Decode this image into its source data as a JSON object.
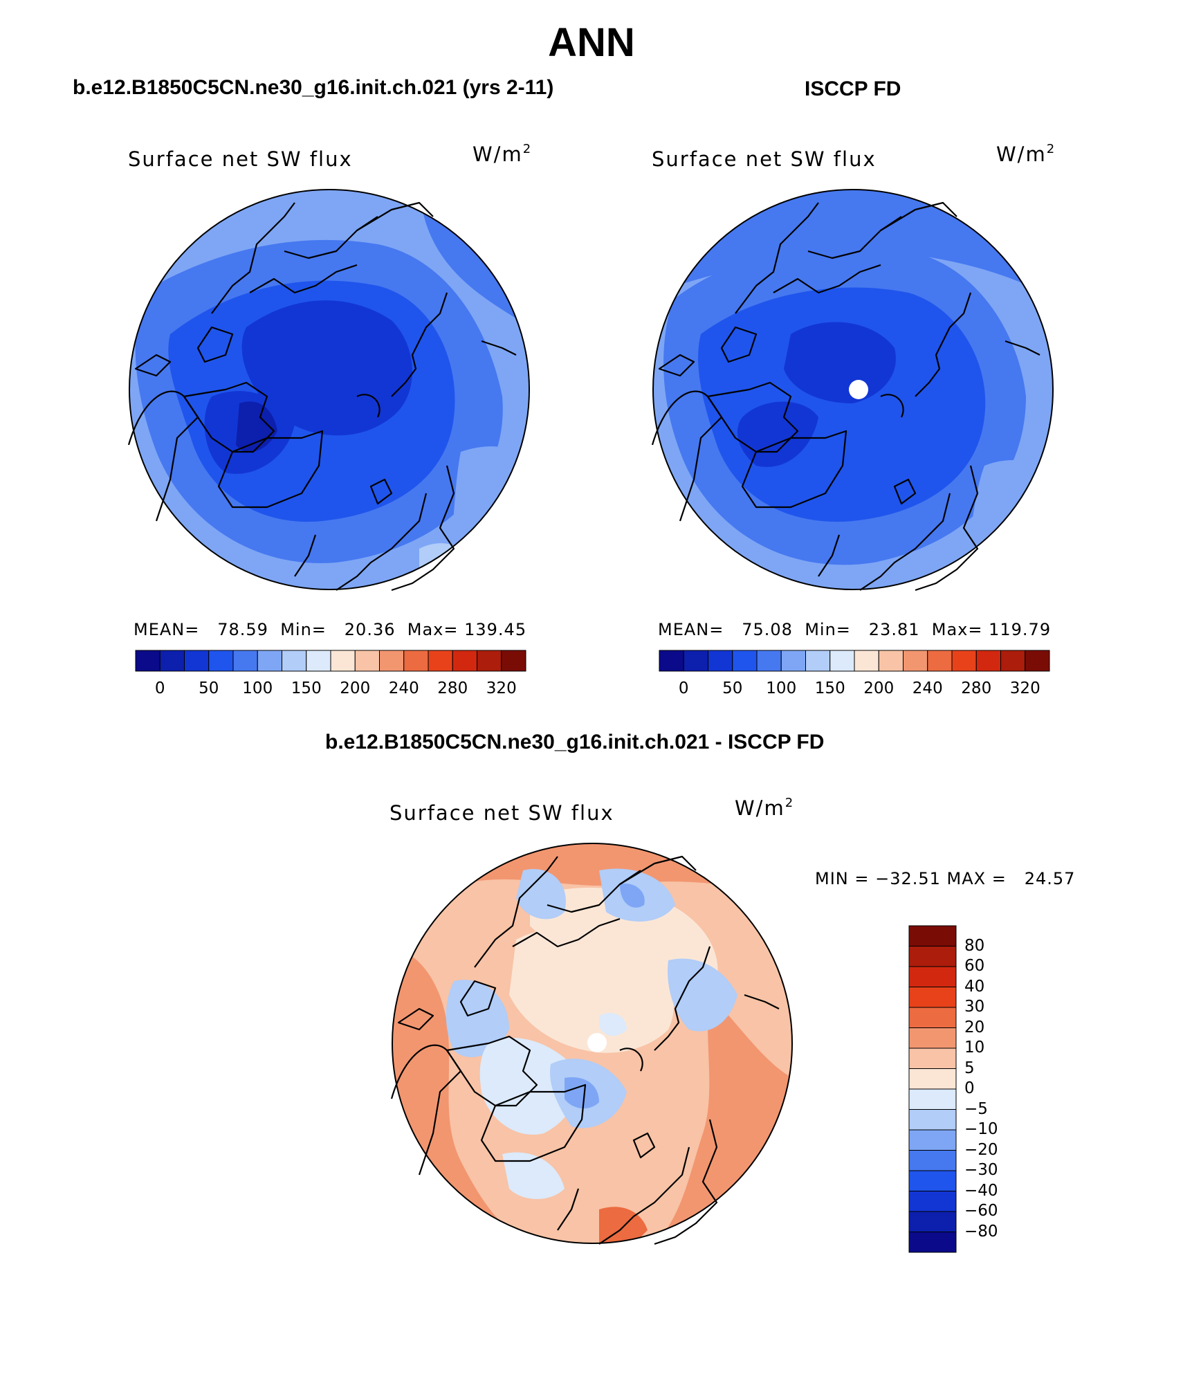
{
  "main_title": "ANN",
  "panels": [
    {
      "subtitle": "b.e12.B1850C5CN.ne30_g16.init.ch.021 (yrs 2-11)",
      "variable": "Surface net SW flux",
      "unit_base": "W/m",
      "unit_exp": "2",
      "stats": "MEAN=   78.59  Min=   20.36  Max= 139.45"
    },
    {
      "subtitle": "ISCCP FD",
      "variable": "Surface net SW flux",
      "unit_base": "W/m",
      "unit_exp": "2",
      "stats": "MEAN=   75.08  Min=   23.81  Max= 119.79"
    }
  ],
  "difference": {
    "subtitle": "b.e12.B1850C5CN.ne30_g16.init.ch.021 - ISCCP FD",
    "variable": "Surface net SW flux",
    "unit_base": "W/m",
    "unit_exp": "2",
    "stats": "MIN = −32.51 MAX =   24.57"
  },
  "colorbar_abs": {
    "colors": [
      "#0a0a8a",
      "#0d1fad",
      "#1236d4",
      "#1f55ec",
      "#4678f0",
      "#7ea6f5",
      "#b1cdf8",
      "#dceafb",
      "#fbe6d6",
      "#f8c3a6",
      "#f29670",
      "#ec6b40",
      "#e8421a",
      "#d22810",
      "#ac1d0b",
      "#7a0c06"
    ],
    "ticks": [
      "0",
      "50",
      "100",
      "150",
      "200",
      "240",
      "280",
      "320"
    ]
  },
  "colorbar_diff": {
    "colors": [
      "#0a0a8a",
      "#0d1fad",
      "#1236d4",
      "#1f55ec",
      "#4678f0",
      "#7ea6f5",
      "#b1cdf8",
      "#dceafb",
      "#fbe6d6",
      "#f8c3a6",
      "#f29670",
      "#ec6b40",
      "#e8421a",
      "#d22810",
      "#ac1d0b",
      "#7a0c06"
    ],
    "ticks": [
      "80",
      "60",
      "40",
      "30",
      "20",
      "10",
      "5",
      "0",
      "−5",
      "−10",
      "−20",
      "−30",
      "−40",
      "−60",
      "−80"
    ]
  }
}
